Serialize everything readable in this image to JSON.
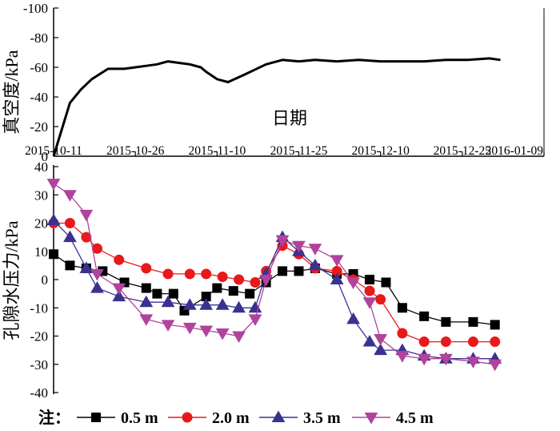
{
  "chart_data": [
    {
      "type": "line",
      "ylabel": "真空度/kPa",
      "xlabel": "日期",
      "y_ticks": [
        "-100",
        "-80",
        "-60",
        "-40",
        "-20",
        "0"
      ],
      "ylim": [
        0,
        -100
      ],
      "x_tick_labels": [
        "2015-10-11",
        "2015-10-26",
        "2015-11-10",
        "2015-11-25",
        "2015-12-10",
        "2015-12-25",
        "2016-01-09"
      ],
      "x_start": "2015-10-11",
      "x_end": "2016-01-09",
      "color": "#000000",
      "series": [
        {
          "x": [
            "2015-10-11",
            "2015-10-14",
            "2015-10-16",
            "2015-10-18",
            "2015-10-21",
            "2015-10-24",
            "2015-10-26",
            "2015-10-28",
            "2015-10-30",
            "2015-11-01",
            "2015-11-03",
            "2015-11-05",
            "2015-11-07",
            "2015-11-08",
            "2015-11-10",
            "2015-11-12",
            "2015-11-15",
            "2015-11-19",
            "2015-11-22",
            "2015-11-25",
            "2015-11-28",
            "2015-12-02",
            "2015-12-06",
            "2015-12-10",
            "2015-12-14",
            "2015-12-18",
            "2015-12-22",
            "2015-12-26",
            "2015-12-30",
            "2016-01-01"
          ],
          "y": [
            0,
            -36,
            -45,
            -52,
            -59,
            -59,
            -60,
            -61,
            -62,
            -64,
            -63,
            -62,
            -60,
            -57,
            -52,
            -50,
            -55,
            -62,
            -65,
            -64,
            -65,
            -64,
            -65,
            -64,
            -64,
            -64,
            -65,
            -65,
            -66,
            -65
          ]
        }
      ]
    },
    {
      "type": "line",
      "ylabel": "孔隙水压力/kPa",
      "y_ticks": [
        "40",
        "30",
        "20",
        "10",
        "0",
        "-10",
        "-20",
        "-30",
        "-40"
      ],
      "ylim": [
        -40,
        40
      ],
      "x_start": "2015-10-11",
      "x_end": "2016-01-09",
      "legend_prefix": "注：",
      "legend_position": "bottom",
      "series": [
        {
          "name": "0.5 m",
          "color": "#000000",
          "marker": "square",
          "x": [
            "2015-10-11",
            "2015-10-14",
            "2015-10-17",
            "2015-10-20",
            "2015-10-24",
            "2015-10-28",
            "2015-10-30",
            "2015-11-02",
            "2015-11-04",
            "2015-11-08",
            "2015-11-10",
            "2015-11-13",
            "2015-11-16",
            "2015-11-19",
            "2015-11-22",
            "2015-11-25",
            "2015-11-28",
            "2015-12-02",
            "2015-12-05",
            "2015-12-08",
            "2015-12-11",
            "2015-12-14",
            "2015-12-18",
            "2015-12-22",
            "2015-12-27",
            "2015-12-31"
          ],
          "y": [
            9,
            5,
            4,
            3,
            -1,
            -3,
            -5,
            -5,
            -11,
            -6,
            -3,
            -4,
            -5,
            -1,
            3,
            3,
            4,
            2,
            2,
            0,
            -1,
            -10,
            -13,
            -15,
            -15,
            -16
          ]
        },
        {
          "name": "2.0 m",
          "color": "#e8191b",
          "marker": "circle",
          "x": [
            "2015-10-11",
            "2015-10-14",
            "2015-10-17",
            "2015-10-19",
            "2015-10-23",
            "2015-10-28",
            "2015-11-01",
            "2015-11-05",
            "2015-11-08",
            "2015-11-11",
            "2015-11-14",
            "2015-11-17",
            "2015-11-19",
            "2015-11-22",
            "2015-11-25",
            "2015-11-28",
            "2015-12-02",
            "2015-12-05",
            "2015-12-08",
            "2015-12-10",
            "2015-12-14",
            "2015-12-18",
            "2015-12-22",
            "2015-12-27",
            "2015-12-31"
          ],
          "y": [
            20,
            20,
            15,
            11,
            7,
            4,
            2,
            2,
            2,
            1,
            0,
            -1,
            3,
            12,
            9,
            4,
            3,
            0,
            -4,
            -7,
            -19,
            -22,
            -22,
            -22,
            -22
          ]
        },
        {
          "name": "3.5 m",
          "color": "#3a3291",
          "marker": "triangle-up",
          "x": [
            "2015-10-11",
            "2015-10-14",
            "2015-10-17",
            "2015-10-19",
            "2015-10-23",
            "2015-10-28",
            "2015-11-01",
            "2015-11-05",
            "2015-11-08",
            "2015-11-11",
            "2015-11-14",
            "2015-11-17",
            "2015-11-19",
            "2015-11-22",
            "2015-11-25",
            "2015-11-28",
            "2015-12-02",
            "2015-12-05",
            "2015-12-08",
            "2015-12-10",
            "2015-12-14",
            "2015-12-18",
            "2015-12-22",
            "2015-12-27",
            "2015-12-31"
          ],
          "y": [
            21,
            15,
            4,
            -3,
            -6,
            -8,
            -8,
            -9,
            -9,
            -9,
            -10,
            -10,
            2,
            15,
            10,
            5,
            0,
            -14,
            -22,
            -25,
            -25,
            -27,
            -28,
            -28,
            -28
          ]
        },
        {
          "name": "4.5 m",
          "color": "#b0439c",
          "marker": "triangle-down",
          "x": [
            "2015-10-11",
            "2015-10-14",
            "2015-10-17",
            "2015-10-19",
            "2015-10-23",
            "2015-10-28",
            "2015-11-01",
            "2015-11-05",
            "2015-11-08",
            "2015-11-11",
            "2015-11-14",
            "2015-11-17",
            "2015-11-19",
            "2015-11-22",
            "2015-11-25",
            "2015-11-28",
            "2015-12-02",
            "2015-12-05",
            "2015-12-08",
            "2015-12-10",
            "2015-12-14",
            "2015-12-18",
            "2015-12-22",
            "2015-12-27",
            "2015-12-31"
          ],
          "y": [
            34,
            30,
            23,
            2,
            -3,
            -14,
            -16,
            -17,
            -18,
            -19,
            -20,
            -14,
            0,
            14,
            12,
            11,
            7,
            -1,
            -8,
            -21,
            -27,
            -28,
            -28,
            -29,
            -30
          ]
        }
      ]
    }
  ]
}
